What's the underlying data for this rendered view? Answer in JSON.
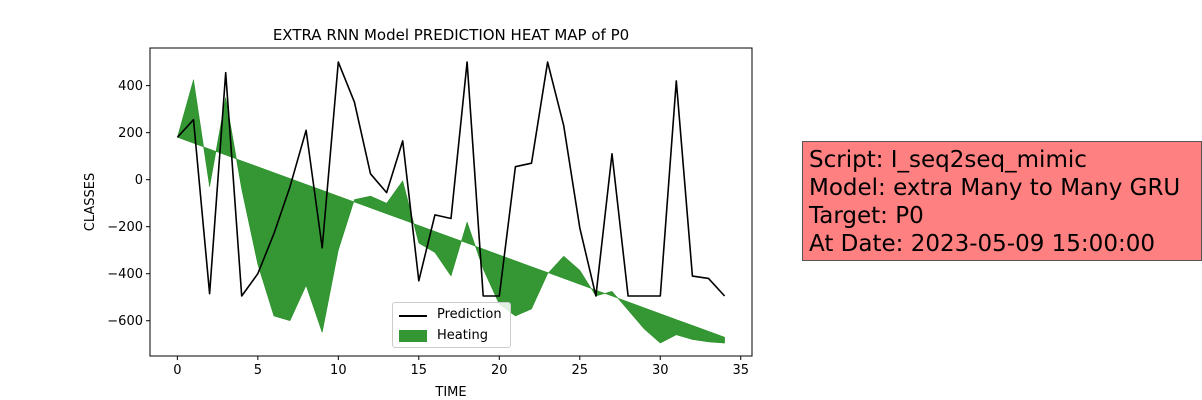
{
  "chart_data": {
    "type": "line",
    "title": "EXTRA RNN Model PREDICTION HEAT MAP of P0",
    "xlabel": "TIME",
    "ylabel": "CLASSES",
    "xlim": [
      -1.7,
      35.7
    ],
    "ylim": [
      -750,
      560
    ],
    "xticks": [
      0,
      5,
      10,
      15,
      20,
      25,
      30,
      35
    ],
    "yticks": [
      -600,
      -400,
      -200,
      0,
      200,
      400
    ],
    "grid": false,
    "legend_position": "lower-center",
    "series": [
      {
        "name": "Prediction",
        "type": "line",
        "color": "#000000",
        "x": [
          0,
          1,
          2,
          3,
          4,
          5,
          6,
          7,
          8,
          9,
          10,
          11,
          12,
          13,
          14,
          15,
          16,
          17,
          18,
          19,
          20,
          21,
          22,
          23,
          24,
          25,
          26,
          27,
          28,
          29,
          30,
          31,
          32,
          33,
          34
        ],
        "y": [
          180,
          255,
          -485,
          455,
          -495,
          -400,
          -230,
          -30,
          210,
          -290,
          500,
          330,
          25,
          -55,
          165,
          -430,
          -150,
          -165,
          500,
          -495,
          -495,
          55,
          70,
          500,
          230,
          -205,
          -495,
          110,
          -495,
          -495,
          -495,
          420,
          -410,
          -420,
          -495
        ]
      },
      {
        "name": "Heating",
        "type": "area",
        "color": "#1e8c1e",
        "x": [
          0,
          1,
          2,
          3,
          4,
          5,
          6,
          7,
          8,
          9,
          10,
          11,
          12,
          13,
          14,
          15,
          16,
          17,
          18,
          19,
          20,
          21,
          22,
          23,
          24,
          25,
          26,
          27,
          28,
          29,
          30,
          31,
          32,
          33,
          34
        ],
        "y1": [
          180,
          155,
          130,
          105,
          80,
          55,
          30,
          5,
          -20,
          -45,
          -70,
          -95,
          -120,
          -145,
          -170,
          -195,
          -220,
          -245,
          -270,
          -295,
          -320,
          -345,
          -370,
          -395,
          -420,
          -445,
          -470,
          -495,
          -520,
          -545,
          -570,
          -595,
          -620,
          -645,
          -670
        ],
        "y2": [
          180,
          425,
          -30,
          350,
          -40,
          -360,
          -580,
          -600,
          -450,
          -650,
          -300,
          -85,
          -70,
          -100,
          -5,
          -270,
          -310,
          -410,
          -180,
          -380,
          -530,
          -580,
          -550,
          -400,
          -325,
          -385,
          -495,
          -475,
          -555,
          -635,
          -695,
          -660,
          -680,
          -690,
          -695
        ]
      }
    ]
  },
  "info": {
    "line1": "Script: I_seq2seq_mimic",
    "line2": "Model: extra Many to Many GRU",
    "line3": "Target: P0",
    "line4": "At Date: 2023-05-09 15:00:00"
  }
}
